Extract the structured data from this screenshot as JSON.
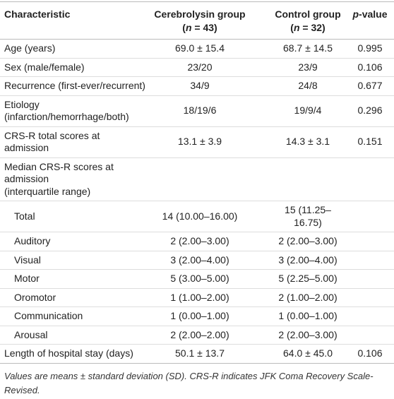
{
  "header": [
    {
      "label": "Characteristic"
    },
    {
      "label": "Cerebrolysin group",
      "n_line": [
        {
          "text": "("
        },
        {
          "text": "n",
          "italic": true
        },
        {
          "text": " = 43)"
        }
      ]
    },
    {
      "label": "Control group",
      "n_line": [
        {
          "text": "("
        },
        {
          "text": "n",
          "italic": true
        },
        {
          "text": " = 32)"
        }
      ]
    },
    {
      "label_runs": [
        {
          "text": "p",
          "italic": true
        },
        {
          "text": "-value"
        }
      ]
    }
  ],
  "rows": [
    {
      "cells": [
        "Age (years)",
        "69.0 ± 15.4",
        "68.7 ± 14.5",
        "0.995"
      ]
    },
    {
      "cells": [
        "Sex (male/female)",
        "23/20",
        "23/9",
        "0.106"
      ]
    },
    {
      "cells": [
        "Recurrence (first-ever/recurrent)",
        "34/9",
        "24/8",
        "0.677"
      ]
    },
    {
      "cells": [
        [
          "Etiology",
          "(infarction/hemorrhage/both)"
        ],
        "18/19/6",
        "19/9/4",
        "0.296"
      ]
    },
    {
      "cells": [
        "CRS-R total scores at admission",
        "13.1 ± 3.9",
        "14.3 ± 3.1",
        "0.151"
      ]
    },
    {
      "cells": [
        [
          "Median CRS-R scores at admission",
          "(interquartile range)"
        ],
        null,
        null,
        null
      ]
    },
    {
      "cells": [
        "Total",
        "14 (10.00–16.00)",
        "15 (11.25–16.75)",
        null
      ],
      "indent": true
    },
    {
      "cells": [
        "Auditory",
        "2 (2.00–3.00)",
        "2 (2.00–3.00)",
        null
      ],
      "indent": true
    },
    {
      "cells": [
        "Visual",
        "3 (2.00–4.00)",
        "3 (2.00–4.00)",
        null
      ],
      "indent": true
    },
    {
      "cells": [
        "Motor",
        "5 (3.00–5.00)",
        "5 (2.25–5.00)",
        null
      ],
      "indent": true
    },
    {
      "cells": [
        "Oromotor",
        "1 (1.00–2.00)",
        "2 (1.00–2.00)",
        null
      ],
      "indent": true
    },
    {
      "cells": [
        "Communication",
        "1 (0.00–1.00)",
        "1 (0.00–1.00)",
        null
      ],
      "indent": true
    },
    {
      "cells": [
        "Arousal",
        "2 (2.00–2.00)",
        "2 (2.00–3.00)",
        null
      ],
      "indent": true
    },
    {
      "cells": [
        "Length of hospital stay (days)",
        "50.1 ± 13.7",
        "64.0 ± 45.0",
        "0.106"
      ]
    }
  ],
  "footnote": "Values are means ± standard deviation (SD). CRS-R indicates JFK Coma Recovery Scale-Revised."
}
